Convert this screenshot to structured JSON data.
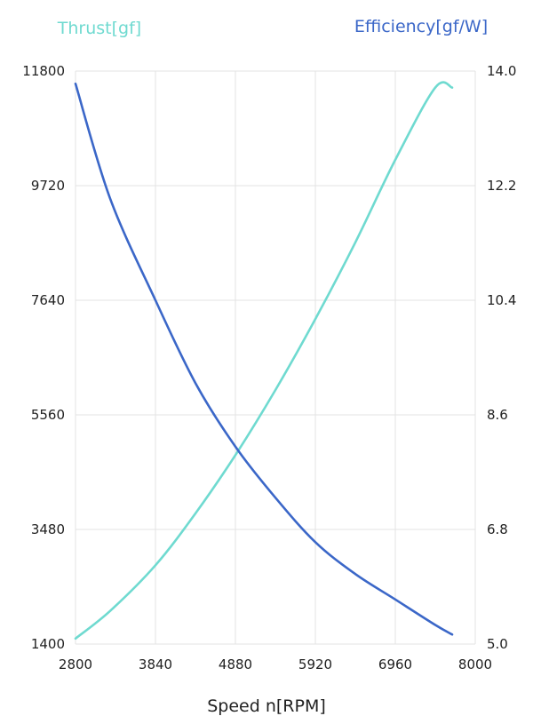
{
  "chart_data": {
    "type": "line",
    "xlabel": "Speed n[RPM]",
    "x_ticks": [
      "2800",
      "3840",
      "4880",
      "5920",
      "6960",
      "8000"
    ],
    "xlim": [
      2800,
      8000
    ],
    "grid": true,
    "y_left": {
      "label": "Thrust[gf]",
      "color": "#6fdad0",
      "ticks": [
        "11800",
        "9720",
        "7640",
        "5560",
        "3480",
        "1400"
      ],
      "ylim": [
        1400,
        11800
      ]
    },
    "y_right": {
      "label": "Efficiency[gf/W]",
      "color": "#3b67c8",
      "ticks": [
        "14.0",
        "12.2",
        "10.4",
        "8.6",
        "6.8",
        "5.0"
      ],
      "ylim": [
        5.0,
        14.0
      ]
    },
    "series": [
      {
        "name": "Thrust[gf]",
        "axis": "left",
        "color": "#6fdad0",
        "x": [
          2800,
          3250,
          3840,
          4360,
          4880,
          5400,
          5920,
          6440,
          6960,
          7480,
          7700
        ],
        "y": [
          1500,
          2000,
          2830,
          3770,
          4830,
          6010,
          7300,
          8690,
          10190,
          11500,
          11500
        ]
      },
      {
        "name": "Efficiency[gf/W]",
        "axis": "right",
        "color": "#3b67c8",
        "x": [
          2800,
          3250,
          3840,
          4360,
          4880,
          5400,
          5920,
          6440,
          6960,
          7480,
          7700
        ],
        "y": [
          13.8,
          12.0,
          10.4,
          9.1,
          8.1,
          7.3,
          6.6,
          6.1,
          5.7,
          5.3,
          5.15
        ]
      }
    ]
  }
}
